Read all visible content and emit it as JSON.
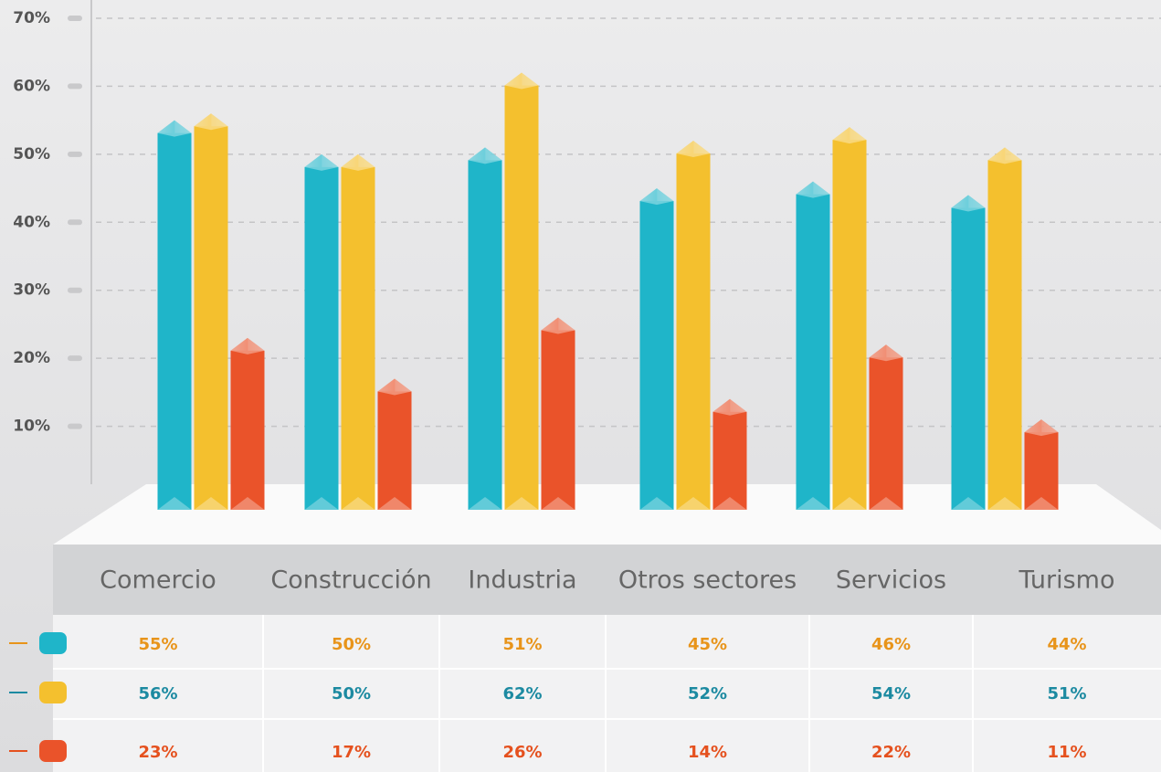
{
  "chart_data": {
    "type": "bar",
    "categories": [
      "Comercio",
      "Construcción",
      "Industria",
      "Otros sectores",
      "Servicios",
      "Turismo"
    ],
    "series": [
      {
        "color": "#1fb5c9",
        "values": [
          55,
          50,
          51,
          45,
          46,
          44
        ],
        "value_labels": [
          "55%",
          "50%",
          "51%",
          "45%",
          "46%",
          "44%"
        ],
        "label_color": "#e8941a"
      },
      {
        "color": "#f4c02e",
        "values": [
          56,
          50,
          62,
          52,
          54,
          51
        ],
        "value_labels": [
          "56%",
          "50%",
          "62%",
          "52%",
          "54%",
          "51%"
        ],
        "label_color": "#1c8aa1"
      },
      {
        "color": "#ea532a",
        "values": [
          23,
          17,
          26,
          14,
          22,
          11
        ],
        "value_labels": [
          "23%",
          "17%",
          "26%",
          "14%",
          "22%",
          "11%"
        ],
        "label_color": "#e5511e"
      }
    ],
    "ylim": [
      0,
      70
    ],
    "yticks": [
      {
        "value": 10,
        "label": "10%"
      },
      {
        "value": 20,
        "label": "20%"
      },
      {
        "value": 30,
        "label": "30%"
      },
      {
        "value": 40,
        "label": "40%"
      },
      {
        "value": 50,
        "label": "50%"
      },
      {
        "value": 60,
        "label": "60%"
      },
      {
        "value": 70,
        "label": "70%"
      }
    ],
    "grid": true
  }
}
